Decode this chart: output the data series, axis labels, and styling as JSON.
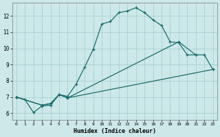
{
  "xlabel": "Humidex (Indice chaleur)",
  "bg_color": "#cce8e8",
  "grid_color": "#aacfcf",
  "line_color": "#1a6b6b",
  "xlim": [
    -0.5,
    23.5
  ],
  "ylim": [
    5.6,
    12.8
  ],
  "xticks": [
    0,
    1,
    2,
    3,
    4,
    5,
    6,
    7,
    8,
    9,
    10,
    11,
    12,
    13,
    14,
    15,
    16,
    17,
    18,
    19,
    20,
    21,
    22,
    23
  ],
  "yticks": [
    6,
    7,
    8,
    9,
    10,
    11,
    12
  ],
  "line1_x": [
    0,
    1,
    2,
    3,
    4,
    5,
    6,
    7,
    8,
    9,
    10,
    11,
    12,
    13,
    14,
    15,
    16,
    17,
    18,
    19,
    20,
    21
  ],
  "line1_y": [
    7.0,
    6.85,
    6.05,
    6.45,
    6.5,
    7.15,
    7.05,
    7.8,
    8.85,
    9.95,
    11.5,
    11.65,
    12.2,
    12.3,
    12.5,
    12.2,
    11.75,
    11.4,
    10.4,
    10.35,
    9.6,
    9.6
  ],
  "line2_x": [
    0,
    3,
    4,
    5,
    6,
    19,
    21,
    22,
    23
  ],
  "line2_y": [
    7.0,
    6.5,
    6.6,
    7.15,
    6.95,
    10.4,
    9.6,
    9.6,
    8.7
  ],
  "line3_x": [
    0,
    3,
    4,
    5,
    6,
    23
  ],
  "line3_y": [
    7.0,
    6.5,
    6.6,
    7.15,
    6.95,
    8.7
  ]
}
